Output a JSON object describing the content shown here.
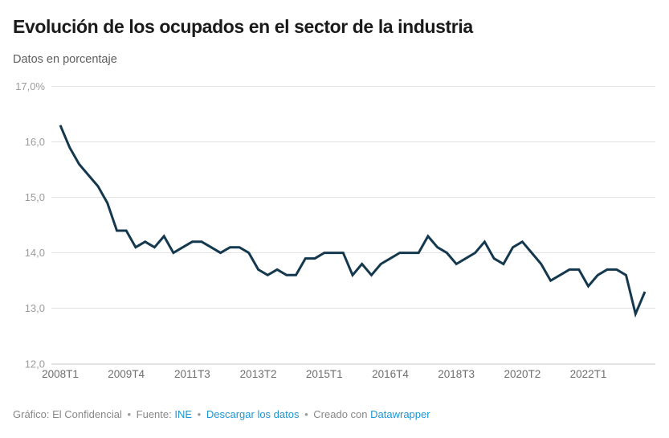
{
  "header": {
    "title": "Evolución de los ocupados en el sector de la industria",
    "subtitle": "Datos en porcentaje"
  },
  "chart_data": {
    "type": "line",
    "title": "Evolución de los ocupados en el sector de la industria",
    "subtitle": "Datos en porcentaje",
    "unit": "%",
    "grid": "horizontal",
    "legend": "none",
    "line_color": "#14384e",
    "ylim": [
      12,
      17
    ],
    "yticks": [
      {
        "value": 17,
        "label": "17,0%"
      },
      {
        "value": 16,
        "label": "16,0"
      },
      {
        "value": 15,
        "label": "15,0"
      },
      {
        "value": 14,
        "label": "14,0"
      },
      {
        "value": 13,
        "label": "13,0"
      },
      {
        "value": 12,
        "label": "12,0"
      }
    ],
    "xticks": [
      "2008T1",
      "2009T4",
      "2011T3",
      "2013T2",
      "2015T1",
      "2016T4",
      "2018T3",
      "2020T2",
      "2022T1"
    ],
    "categories": [
      "2008T1",
      "2008T2",
      "2008T3",
      "2008T4",
      "2009T1",
      "2009T2",
      "2009T3",
      "2009T4",
      "2010T1",
      "2010T2",
      "2010T3",
      "2010T4",
      "2011T1",
      "2011T2",
      "2011T3",
      "2011T4",
      "2012T1",
      "2012T2",
      "2012T3",
      "2012T4",
      "2013T1",
      "2013T2",
      "2013T3",
      "2013T4",
      "2014T1",
      "2014T2",
      "2014T3",
      "2014T4",
      "2015T1",
      "2015T2",
      "2015T3",
      "2015T4",
      "2016T1",
      "2016T2",
      "2016T3",
      "2016T4",
      "2017T1",
      "2017T2",
      "2017T3",
      "2017T4",
      "2018T1",
      "2018T2",
      "2018T3",
      "2018T4",
      "2019T1",
      "2019T2",
      "2019T3",
      "2019T4",
      "2020T1",
      "2020T2",
      "2020T3",
      "2020T4",
      "2021T1",
      "2021T2",
      "2021T3",
      "2021T4",
      "2022T1",
      "2022T2",
      "2022T3",
      "2022T4",
      "2023T1",
      "2023T2",
      "2023T3"
    ],
    "values": [
      16.3,
      15.9,
      15.6,
      15.4,
      15.2,
      14.9,
      14.4,
      14.4,
      14.1,
      14.2,
      14.1,
      14.3,
      14.0,
      14.1,
      14.2,
      14.2,
      14.1,
      14.0,
      14.1,
      14.1,
      14.0,
      13.7,
      13.6,
      13.7,
      13.6,
      13.6,
      13.9,
      13.9,
      14.0,
      14.0,
      14.0,
      13.6,
      13.8,
      13.6,
      13.8,
      13.9,
      14.0,
      14.0,
      14.0,
      14.3,
      14.1,
      14.0,
      13.8,
      13.9,
      14.0,
      14.2,
      13.9,
      13.8,
      14.1,
      14.2,
      14.0,
      13.8,
      13.5,
      13.6,
      13.7,
      13.7,
      13.4,
      13.6,
      13.7,
      13.7,
      13.6,
      12.9,
      13.3
    ]
  },
  "footer": {
    "credit": "Gráfico: El Confidencial",
    "separator": "•",
    "source_label": "Fuente:",
    "source_link": "INE",
    "download_link": "Descargar los datos",
    "created_label": "Creado con",
    "tool_link": "Datawrapper"
  }
}
